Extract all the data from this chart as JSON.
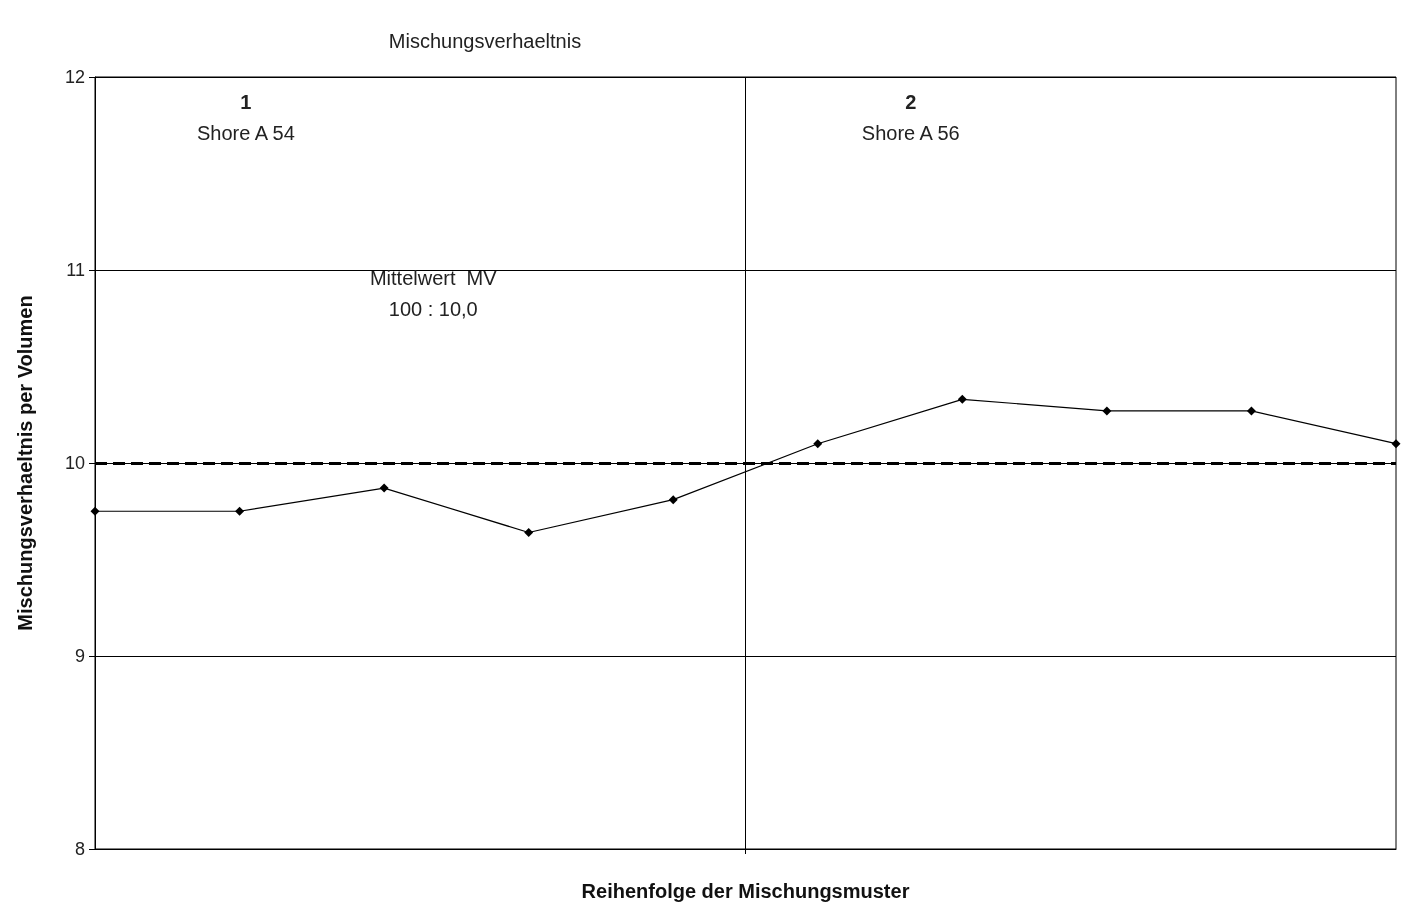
{
  "chart_data": {
    "type": "line",
    "title": "Mischungsverhaeltnis",
    "xlabel": "Reihenfolge der Mischungsmuster",
    "ylabel": "Mischungsverhaeltnis per Volumen",
    "categories": [
      null,
      null,
      null,
      null,
      null,
      null,
      null,
      null,
      null,
      null
    ],
    "series": [
      {
        "color": "#000000",
        "values": [
          9.75,
          9.75,
          9.87,
          9.64,
          9.81,
          10.1,
          10.33,
          10.27,
          10.27,
          10.1
        ]
      }
    ],
    "ylim": [
      8,
      12
    ],
    "yticks": [
      8,
      9,
      10,
      11,
      12
    ],
    "grid": "y",
    "marker": "diamond",
    "line_style": "solid",
    "ref_lines": [
      {
        "axis": "y",
        "value": 10,
        "label": "Mittelwert  MV\n100 : 10,0",
        "line_style": "dashed",
        "color": "#000000"
      }
    ],
    "annotations": [
      "1",
      "Shore A 54",
      "2",
      "Shore A 56"
    ]
  }
}
